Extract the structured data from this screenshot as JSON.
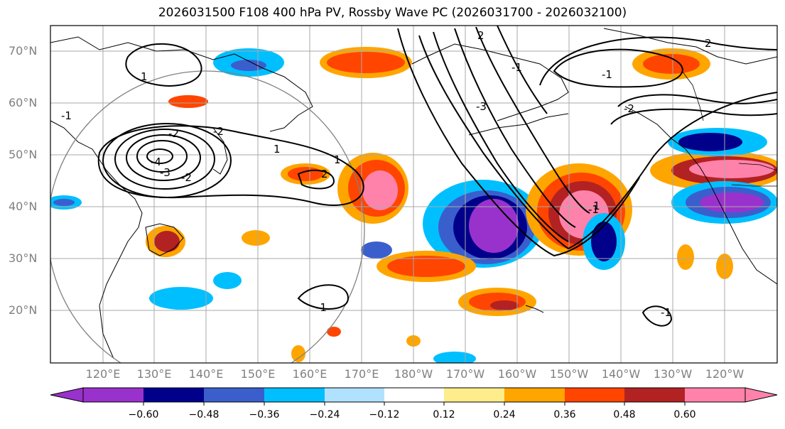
{
  "title": "2026031500 F108 400 hPa PV, Rossby Wave PC (2026031700 - 2026032100)",
  "map": {
    "lat_labels": [
      "70°N",
      "60°N",
      "50°N",
      "40°N",
      "30°N",
      "20°N"
    ],
    "lon_labels": [
      "120°E",
      "130°E",
      "140°E",
      "150°E",
      "160°E",
      "170°E",
      "180°W",
      "170°W",
      "160°W",
      "150°W",
      "140°W",
      "130°W",
      "120°W"
    ],
    "contour_labels": [
      "2",
      "2",
      "1",
      "-1",
      "-3",
      "-2",
      "-4",
      "1",
      "-2",
      "1",
      "2",
      "-1",
      "-2",
      "-1",
      "-1",
      "-3",
      "-2",
      "-1",
      "-1",
      "1"
    ]
  },
  "colorbar": {
    "ticks": [
      "−0.60",
      "−0.48",
      "−0.36",
      "−0.24",
      "−0.12",
      "0.12",
      "0.24",
      "0.36",
      "0.48",
      "0.60"
    ],
    "colors": [
      "#9932cc",
      "#00008b",
      "#3a5fcd",
      "#00bfff",
      "#b0e2ff",
      "#ffffff",
      "#ffec8b",
      "#ffa500",
      "#ff4500",
      "#b22222",
      "#ff82ab"
    ]
  }
}
